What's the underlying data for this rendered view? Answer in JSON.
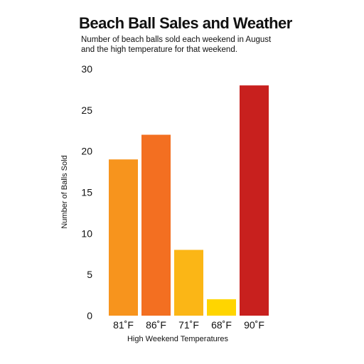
{
  "chart_data": {
    "type": "bar",
    "title": "Beach Ball Sales and Weather",
    "subtitle_lines": [
      "Number of beach balls sold each weekend in August",
      "and the high temperature for that weekend."
    ],
    "xlabel": "High Weekend Temperatures",
    "ylabel": "Number of Balls Sold",
    "categories": [
      "81˚F",
      "86˚F",
      "71˚F",
      "68˚F",
      "90˚F"
    ],
    "values": [
      19,
      22,
      8,
      2,
      28
    ],
    "colors": [
      "#f7941d",
      "#f36f21",
      "#fbb616",
      "#ffd500",
      "#c8201e"
    ],
    "ylim": [
      0,
      30
    ],
    "yticks": [
      0,
      5,
      10,
      15,
      20,
      25,
      30
    ],
    "grid": false,
    "legend": "none"
  }
}
